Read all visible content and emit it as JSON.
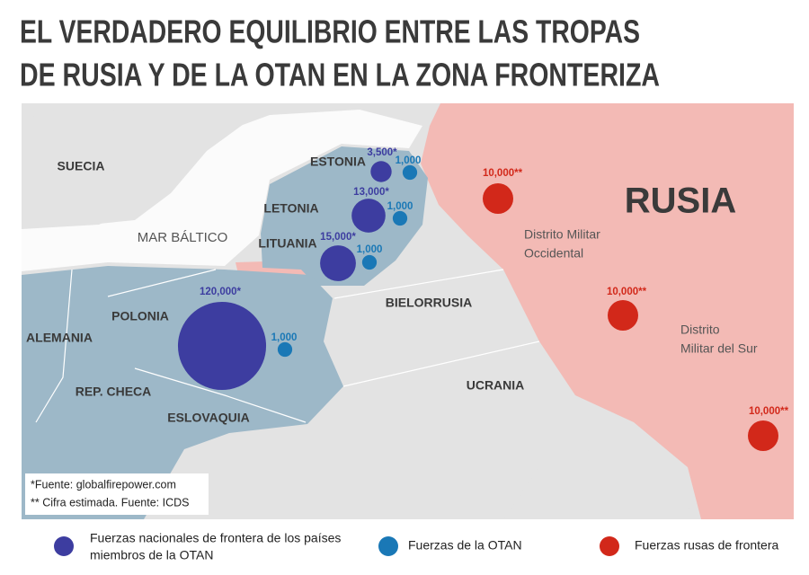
{
  "title": [
    "EL VERDADERO EQUILIBRIO ENTRE LAS TROPAS",
    "DE RUSIA Y DE LA OTAN EN LA ZONA FRONTERIZA"
  ],
  "regions": [
    "SUECIA",
    "ESTONIA",
    "LETONIA",
    "LITUANIA",
    "POLONIA",
    "ALEMANIA",
    "REP. CHECA",
    "ESLOVAQUIA",
    "BIELORRUSIA",
    "UCRANIA",
    "RUSIA"
  ],
  "sea": "MAR BÁLTICO",
  "districts": [
    [
      "Distrito Militar",
      "Occidental"
    ],
    [
      "Distrito",
      "Militar del Sur"
    ]
  ],
  "forces": [
    {
      "name": [
        "Fuerzas nacionales de frontera de los países",
        "miembros de la OTAN"
      ],
      "color": "#3d3da0",
      "markers": [
        {
          "value": 3500,
          "label": "3,500*"
        },
        {
          "value": 13000,
          "label": "13,000*"
        },
        {
          "value": 15000,
          "label": "15,000*"
        },
        {
          "value": 120000,
          "label": "120,000*"
        }
      ]
    },
    {
      "name": [
        "Fuerzas de la OTAN"
      ],
      "color": "#1a78b6",
      "markers": [
        {
          "value": 1000,
          "label": "1,000"
        },
        {
          "value": 1000,
          "label": "1,000"
        },
        {
          "value": 1000,
          "label": "1,000"
        },
        {
          "value": 1000,
          "label": "1,000"
        }
      ]
    },
    {
      "name": [
        "Fuerzas rusas de frontera"
      ],
      "color": "#d2281a",
      "markers": [
        {
          "value": 10000,
          "label": "10,000**"
        },
        {
          "value": 10000,
          "label": "10,000**"
        },
        {
          "value": 10000,
          "label": "10,000**"
        }
      ]
    }
  ],
  "notes": [
    "*Fuente: globalfirepower.com",
    "** Cifra estimada. Fuente: ICDS"
  ]
}
